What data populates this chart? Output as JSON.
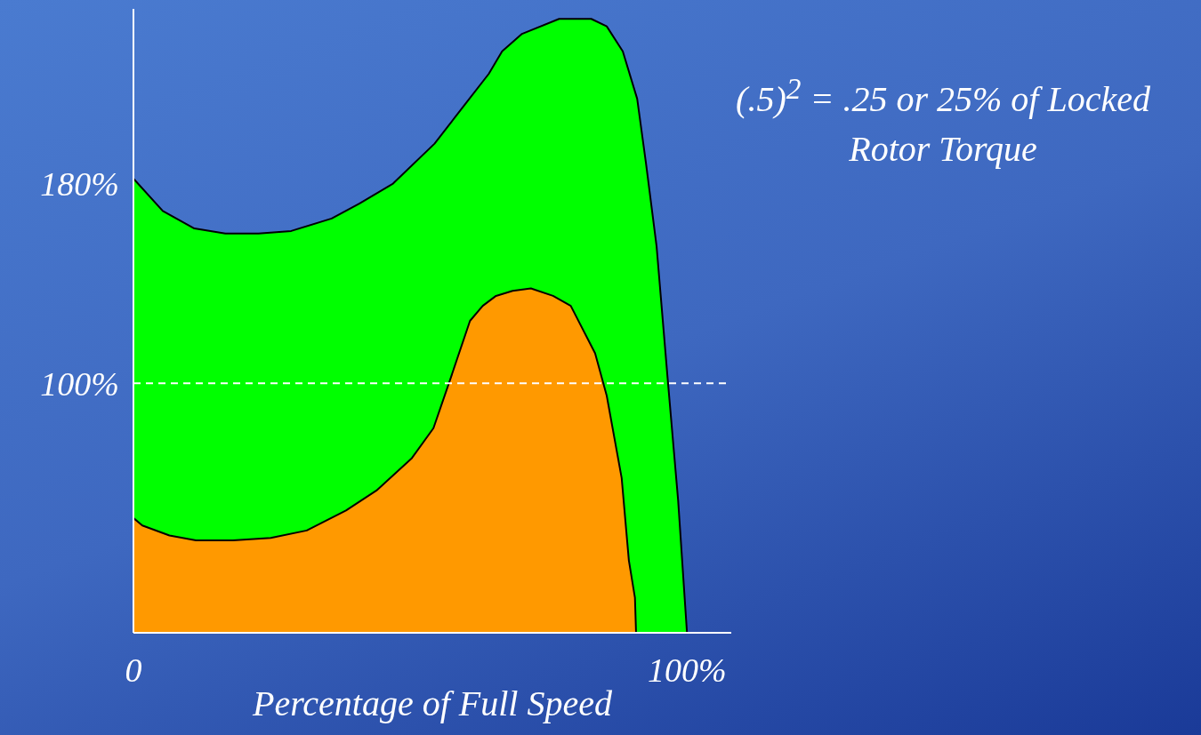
{
  "chart_data": {
    "type": "area",
    "xlabel": "Percentage of Full Speed",
    "annotations": [
      "(.5)$^{2}$ = .25 or 25% of Locked Rotor Torque"
    ],
    "xlim": [
      0,
      108
    ],
    "ylim": [
      0,
      250
    ],
    "xticks": [
      {
        "value": 0,
        "label": "0"
      },
      {
        "value": 100,
        "label": "100%"
      }
    ],
    "yticks": [
      {
        "value": 100,
        "label": "100%"
      },
      {
        "value": 180,
        "label": "180%"
      }
    ],
    "ref_lines": [
      {
        "axis": "y",
        "value": 100,
        "color": "#ffffff",
        "line_style": "dashed"
      }
    ],
    "series": [
      {
        "color": "#00ff00",
        "x": [
          0,
          5.3,
          11,
          16.6,
          22.6,
          28.5,
          35.8,
          40.8,
          46.9,
          54.4,
          60,
          64.2,
          66.6,
          70.2,
          76.9,
          82.7,
          85.5,
          88.4,
          91,
          92.6,
          94.5,
          96.5,
          98.4,
          100
        ],
        "values": [
          182,
          169,
          162,
          160,
          160,
          161,
          166,
          172,
          180,
          196,
          212,
          224,
          233,
          240,
          246,
          246,
          243,
          233,
          214,
          188,
          155,
          102,
          53,
          0
        ]
      },
      {
        "color": "#ff9900",
        "x": [
          0,
          1.6,
          6.5,
          11.3,
          18,
          24.8,
          31.3,
          38.4,
          43.9,
          50.3,
          54.2,
          57.3,
          60.8,
          63.1,
          65.5,
          68.5,
          71.8,
          75.8,
          79,
          83.4,
          85.5,
          88.2,
          89.5,
          90.6,
          90.8
        ],
        "values": [
          46,
          43,
          39,
          37,
          37,
          38,
          41,
          49,
          57,
          70,
          82,
          102,
          125,
          131,
          135,
          137,
          138,
          135,
          131,
          112,
          95,
          62,
          29,
          14,
          0
        ]
      }
    ]
  }
}
